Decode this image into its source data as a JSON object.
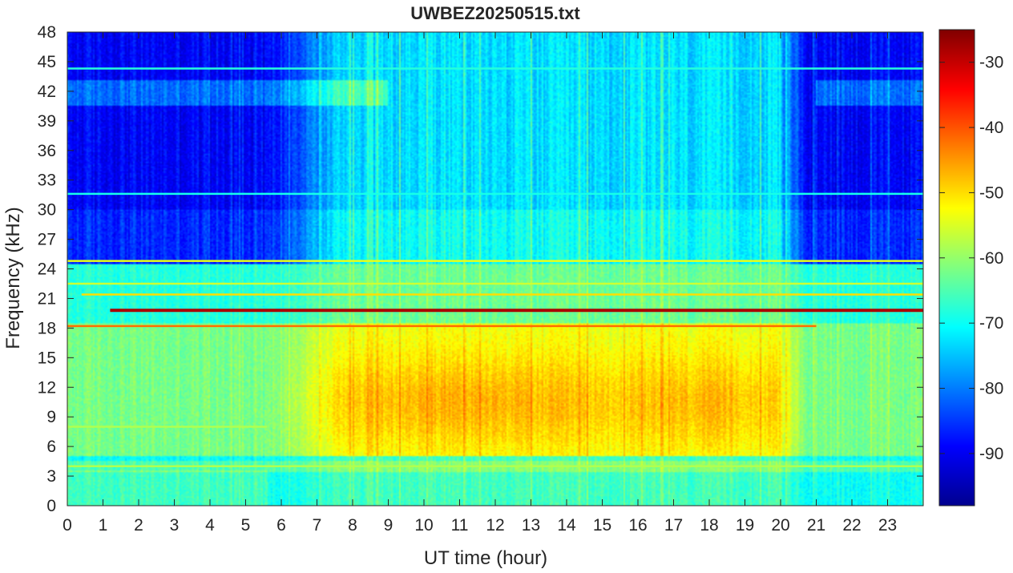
{
  "chart_data": {
    "type": "heatmap",
    "title": "UWBEZ20250515.txt",
    "xlabel": "UT time (hour)",
    "ylabel": "Frequency (kHz)",
    "xlim": [
      0,
      24
    ],
    "ylim": [
      0,
      48
    ],
    "x_ticks": [
      "0",
      "1",
      "2",
      "3",
      "4",
      "5",
      "6",
      "7",
      "8",
      "9",
      "10",
      "11",
      "12",
      "13",
      "14",
      "15",
      "16",
      "17",
      "18",
      "19",
      "20",
      "21",
      "22",
      "23"
    ],
    "y_ticks": [
      "0",
      "3",
      "6",
      "9",
      "12",
      "15",
      "18",
      "21",
      "24",
      "27",
      "30",
      "33",
      "36",
      "39",
      "42",
      "45",
      "48"
    ],
    "colorbar": {
      "colormap": "jet",
      "range": [
        -98,
        -25
      ],
      "ticks": [
        "-90",
        "-80",
        "-70",
        "-60",
        "-50",
        "-40",
        "-30"
      ]
    },
    "narrowband_lines": [
      {
        "freq_khz": 19.8,
        "t_start": 1.2,
        "t_end": 24,
        "level_db": -28
      },
      {
        "freq_khz": 18.2,
        "t_start": 0,
        "t_end": 21,
        "level_db": -42
      },
      {
        "freq_khz": 21.4,
        "t_start": 0.4,
        "t_end": 24,
        "level_db": -50
      },
      {
        "freq_khz": 22.5,
        "t_start": 0,
        "t_end": 24,
        "level_db": -56
      },
      {
        "freq_khz": 24.8,
        "t_start": 0,
        "t_end": 24,
        "level_db": -54
      },
      {
        "freq_khz": 44.3,
        "t_start": 0,
        "t_end": 24,
        "level_db": -68
      },
      {
        "freq_khz": 31.6,
        "t_start": 0,
        "t_end": 24,
        "level_db": -69
      },
      {
        "freq_khz": 4.0,
        "t_start": 0,
        "t_end": 24,
        "level_db": -58
      },
      {
        "freq_khz": 8.0,
        "t_start": 0,
        "t_end": 5.6,
        "level_db": -58
      }
    ]
  }
}
